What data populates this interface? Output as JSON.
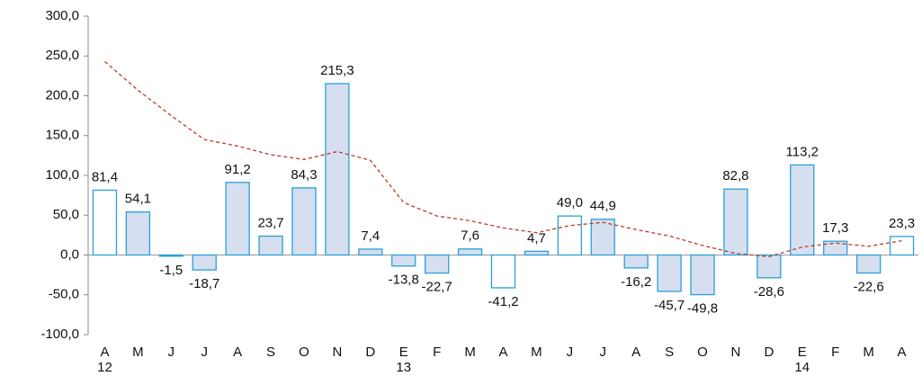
{
  "chart_data": {
    "type": "bar",
    "categories": [
      "A",
      "M",
      "J",
      "J",
      "A",
      "S",
      "O",
      "N",
      "D",
      "E",
      "F",
      "M",
      "A",
      "M",
      "J",
      "J",
      "A",
      "S",
      "O",
      "N",
      "D",
      "E",
      "F",
      "M",
      "A"
    ],
    "category_years": [
      "12",
      null,
      null,
      null,
      null,
      null,
      null,
      null,
      null,
      "13",
      null,
      null,
      null,
      null,
      null,
      null,
      null,
      null,
      null,
      null,
      null,
      "14",
      null,
      null,
      null
    ],
    "values": [
      81.4,
      54.1,
      -1.5,
      -18.7,
      91.2,
      23.7,
      84.3,
      215.3,
      7.4,
      -13.8,
      -22.7,
      7.6,
      -41.2,
      4.7,
      49.0,
      44.9,
      -16.2,
      -45.7,
      -49.8,
      82.8,
      -28.6,
      113.2,
      17.3,
      -22.6,
      23.3
    ],
    "value_labels": [
      "81,4",
      "54,1",
      "-1,5",
      "-18,7",
      "91,2",
      "23,7",
      "84,3",
      "215,3",
      "7,4",
      "-13,8",
      "-22,7",
      "7,6",
      "-41,2",
      "4,7",
      "49,0",
      "44,9",
      "-16,2",
      "-45,7",
      "-49,8",
      "82,8",
      "-28,6",
      "113,2",
      "17,3",
      "-22,6",
      "23,3"
    ],
    "colors": [
      "#ffffff",
      "#d5dff0",
      "#d5dff0",
      "#d5dff0",
      "#d5dff0",
      "#d5dff0",
      "#d5dff0",
      "#d5dff0",
      "#d5dff0",
      "#d5dff0",
      "#d5dff0",
      "#d5dff0",
      "#ffffff",
      "#d5dff0",
      "#ffffff",
      "#d5dff0",
      "#d5dff0",
      "#d5dff0",
      "#d5dff0",
      "#d5dff0",
      "#d5dff0",
      "#d5dff0",
      "#d5dff0",
      "#d5dff0",
      "#ffffff"
    ],
    "border_color": "#2aa0d8",
    "trend": {
      "type": "line",
      "color": "#c0392b",
      "dashed": true,
      "values": [
        243,
        207,
        175,
        145,
        137,
        126,
        120,
        130,
        119,
        66,
        49,
        43,
        34,
        28,
        37,
        41,
        32,
        24,
        12,
        2,
        -2,
        10,
        15,
        11,
        18
      ]
    },
    "ylim": [
      -100,
      300
    ],
    "yticks": [
      {
        "value": -100,
        "label": "-100,0"
      },
      {
        "value": -50,
        "label": "-50,0"
      },
      {
        "value": 0,
        "label": "0,0"
      },
      {
        "value": 50,
        "label": "50,0"
      },
      {
        "value": 100,
        "label": "100,0"
      },
      {
        "value": 150,
        "label": "150,0"
      },
      {
        "value": 200,
        "label": "200,0"
      },
      {
        "value": 250,
        "label": "250,0"
      },
      {
        "value": 300,
        "label": "300,0"
      }
    ]
  }
}
